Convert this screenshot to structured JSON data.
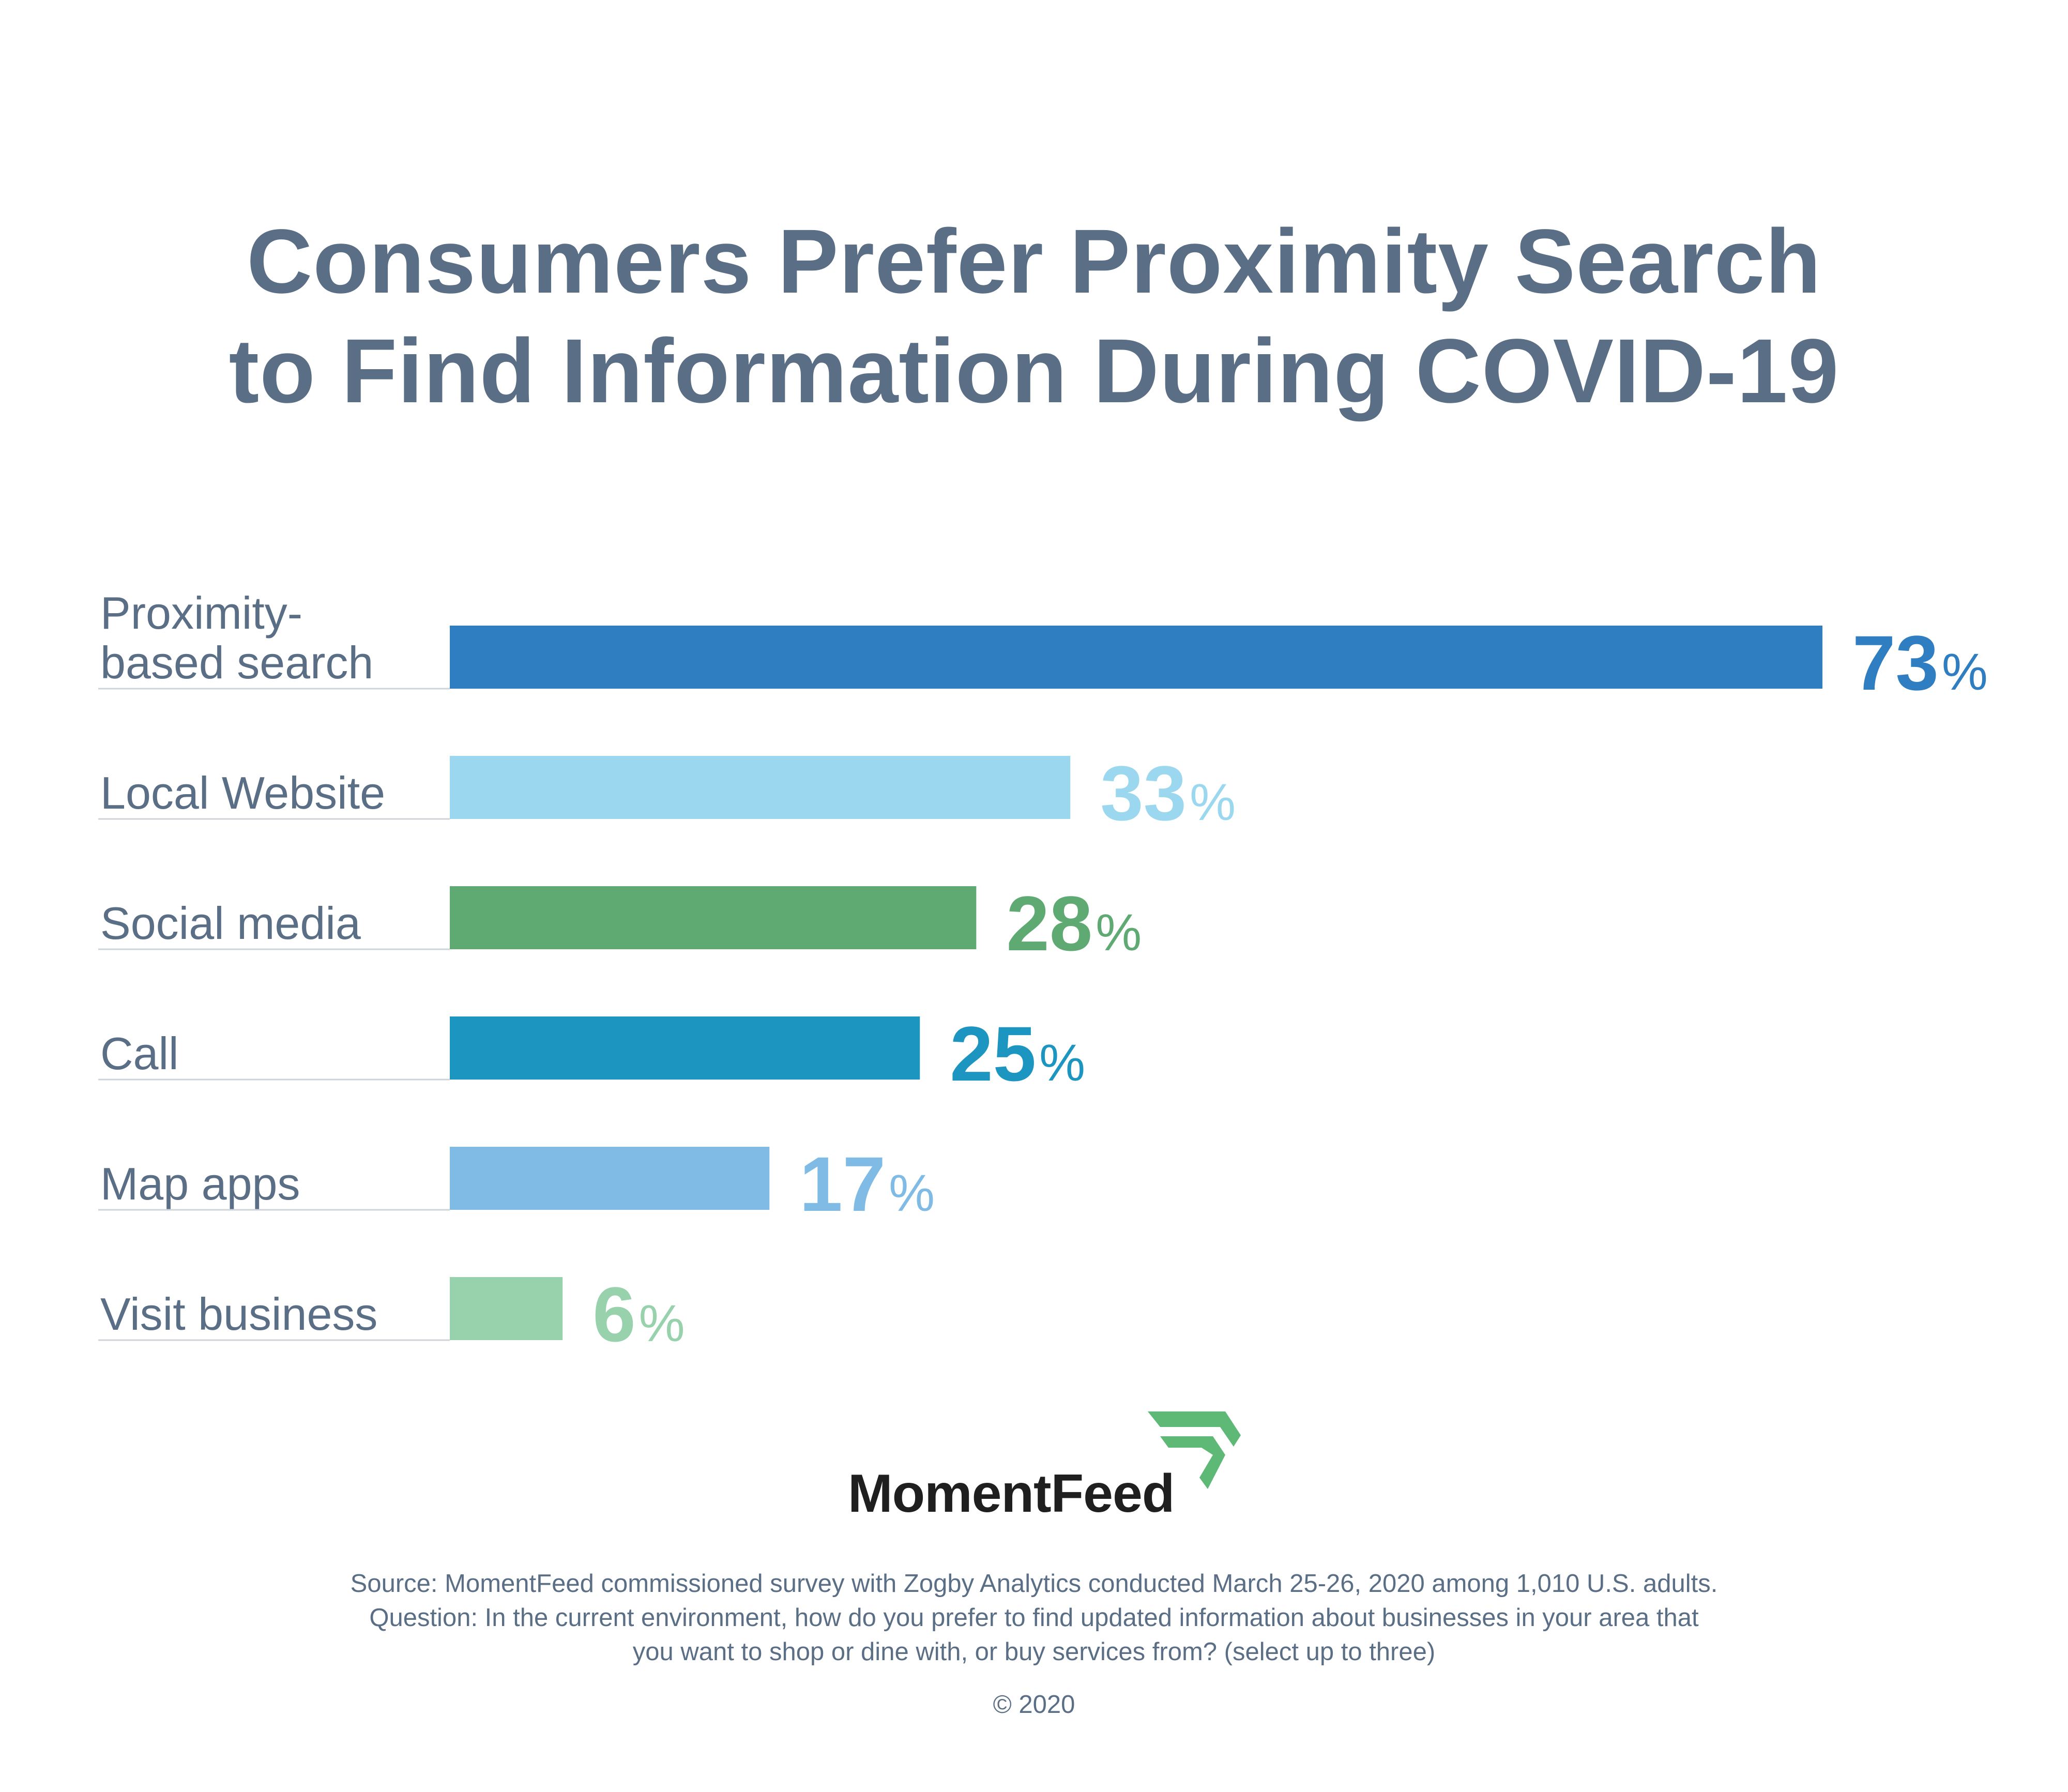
{
  "chart_data": {
    "type": "bar",
    "orientation": "horizontal",
    "title": "Consumers Prefer Proximity Search to Find Information During COVID-19",
    "title_lines": [
      "Consumers Prefer Proximity Search",
      "to Find Information During COVID-19"
    ],
    "categories": [
      "Proximity-based search",
      "Local Website",
      "Social media",
      "Call",
      "Map apps",
      "Visit business"
    ],
    "category_lines": [
      [
        "Proximity-",
        "based search"
      ],
      [
        "Local Website"
      ],
      [
        "Social media"
      ],
      [
        "Call"
      ],
      [
        "Map apps"
      ],
      [
        "Visit business"
      ]
    ],
    "values": [
      73,
      33,
      28,
      25,
      17,
      6
    ],
    "value_labels": [
      "73",
      "33",
      "28",
      "25",
      "17",
      "6"
    ],
    "unit": "%",
    "xlim": [
      0,
      73
    ],
    "colors": [
      "#2f7ec1",
      "#9bd8f0",
      "#5faa72",
      "#1c95c1",
      "#80bbe6",
      "#97d2ac"
    ],
    "grid": false,
    "legend": "none"
  },
  "brand": {
    "name": "MomentFeed",
    "logo_icon": "momentfeed-logo-icon",
    "logo_color": "#5fb976"
  },
  "footnote": {
    "source": "Source: MomentFeed commissioned survey with Zogby Analytics conducted March 25-26, 2020 among 1,010 U.S. adults.",
    "question_line1": "Question: In the current environment, how do you prefer to find updated information about businesses in your area that",
    "question_line2": "you want to shop or dine with, or buy services from? (select up to three)",
    "copyright": "© 2020"
  }
}
